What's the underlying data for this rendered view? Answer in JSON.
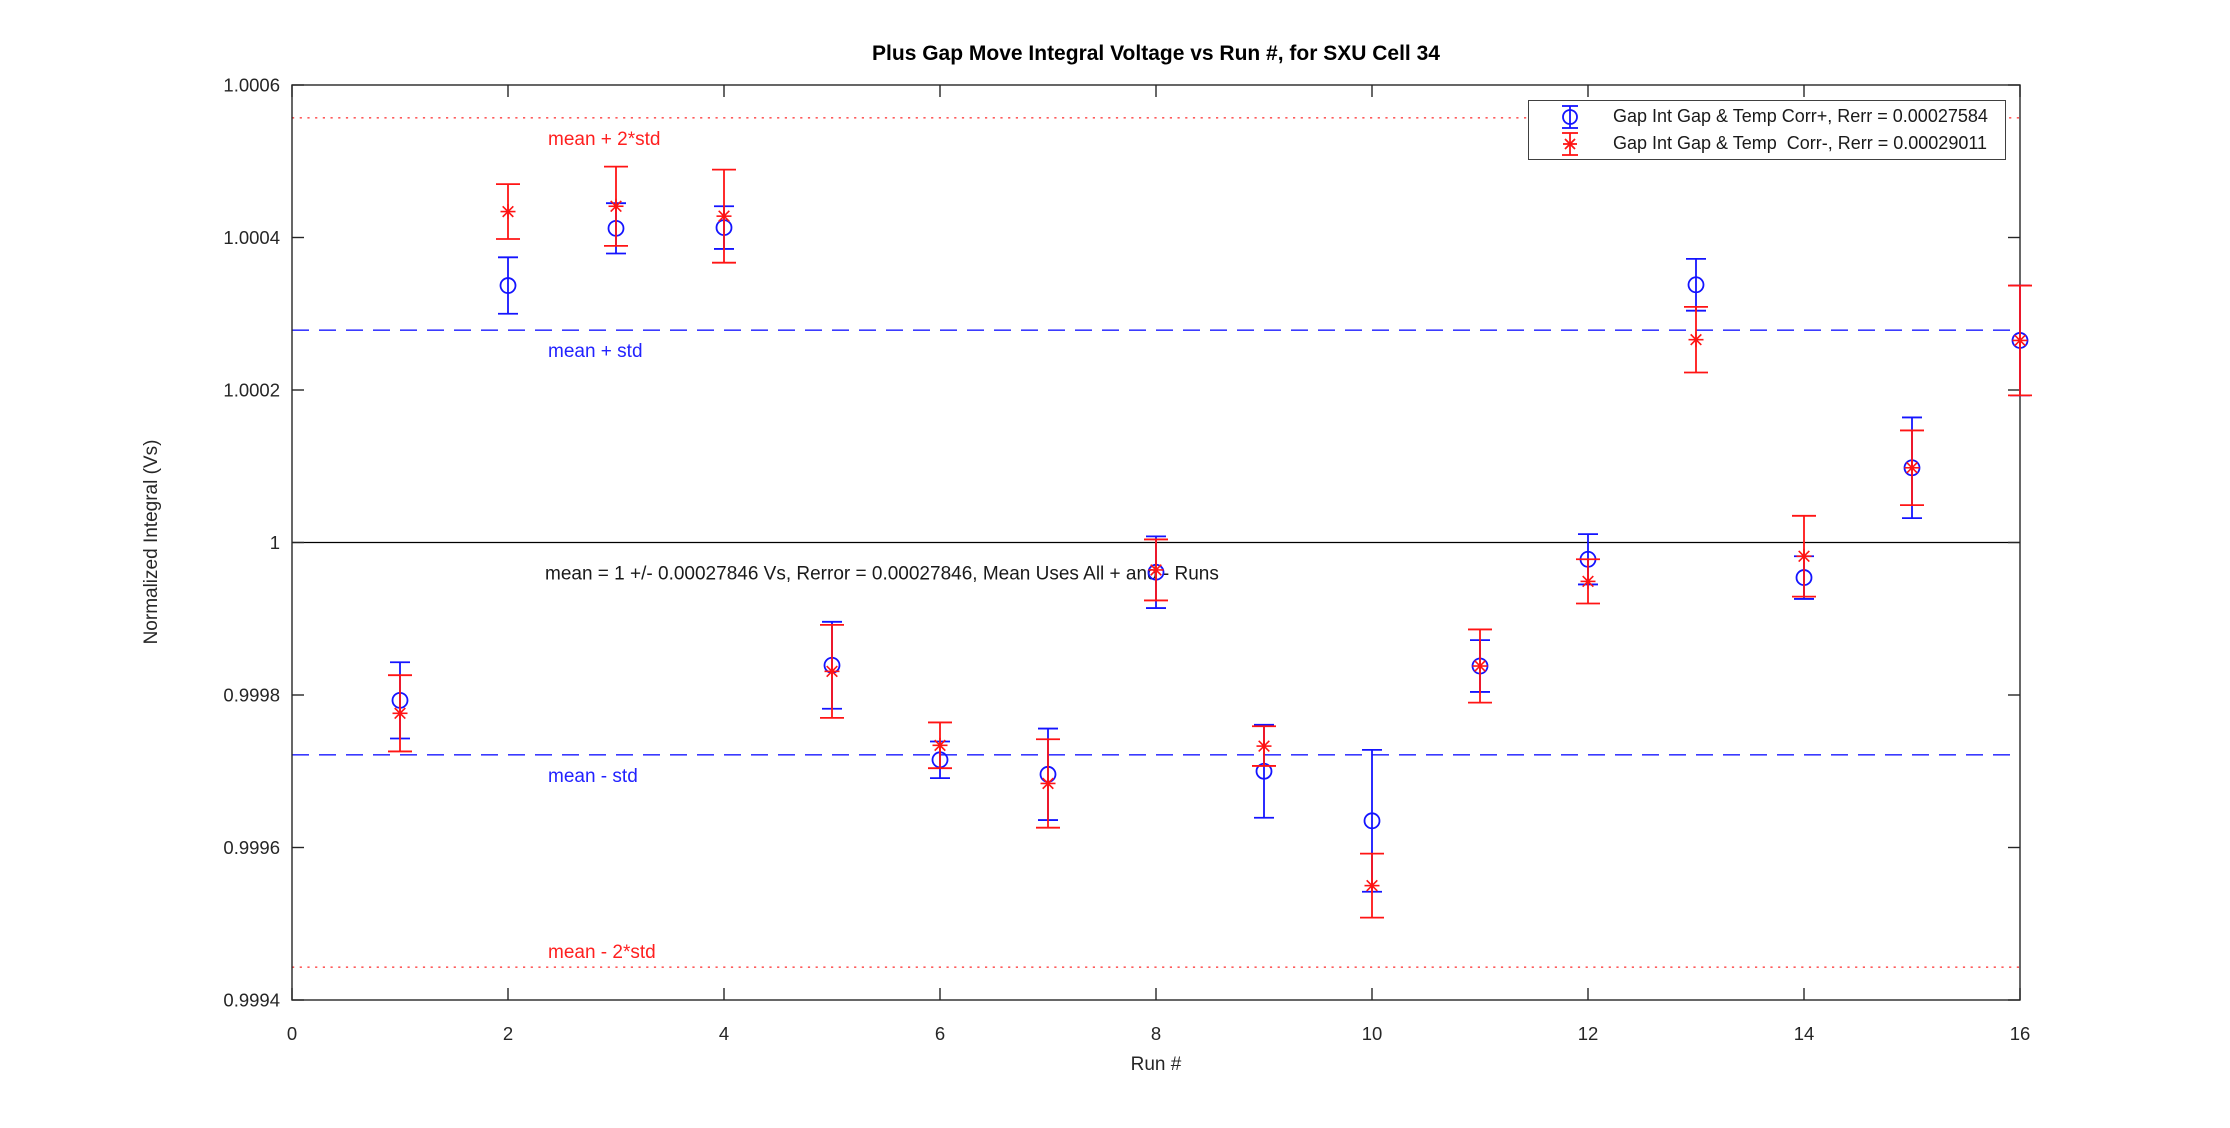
{
  "figure": {
    "title": "Plus Gap Move Integral Voltage vs Run #, for SXU Cell 34",
    "xlabel": "Run #",
    "ylabel": "Normalized Integral (Vs)"
  },
  "chart_data": {
    "type": "scatter",
    "title": "Plus Gap Move Integral Voltage vs Run #, for SXU Cell 34",
    "xlabel": "Run #",
    "ylabel": "Normalized Integral (Vs)",
    "xlim": [
      0,
      16
    ],
    "ylim": [
      0.9994,
      1.0006
    ],
    "xticks": [
      0,
      2,
      4,
      6,
      8,
      10,
      12,
      14,
      16
    ],
    "xtick_labels": [
      "0",
      "2",
      "4",
      "6",
      "8",
      "10",
      "12",
      "14",
      "16"
    ],
    "yticks": [
      0.9994,
      0.9996,
      0.9998,
      1,
      1.0002,
      1.0004,
      1.0006
    ],
    "ytick_labels": [
      "0.9994",
      "0.9996",
      "0.9998",
      "1",
      "1.0002",
      "1.0004",
      "1.0006"
    ],
    "grid": false,
    "legend_position": "top-right",
    "axis_color": "#262626",
    "x": [
      1,
      2,
      3,
      4,
      5,
      6,
      7,
      8,
      9,
      10,
      11,
      12,
      13,
      14,
      15,
      16
    ],
    "series": [
      {
        "name": "Gap Int Gap & Temp Corr+, Rerr = 0.00027584",
        "marker": "circle",
        "color": "#1414ff",
        "cap_halfwidth": 10,
        "values": [
          0.999793,
          1.000337,
          1.000412,
          1.000413,
          0.999839,
          0.999715,
          0.999696,
          0.999961,
          0.9997,
          0.999635,
          0.999838,
          0.999978,
          1.000338,
          0.999954,
          1.000098,
          1.000265
        ],
        "errors": [
          5e-05,
          3.7e-05,
          3.3e-05,
          2.8e-05,
          5.7e-05,
          2.4e-05,
          6e-05,
          4.7e-05,
          6.1e-05,
          9.3e-05,
          3.4e-05,
          3.3e-05,
          3.4e-05,
          2.8e-05,
          6.6e-05,
          7.2e-05
        ]
      },
      {
        "name": "Gap Int Gap & Temp  Corr-, Rerr = 0.00029011",
        "marker": "asterisk",
        "color": "#ff1414",
        "cap_halfwidth": 12,
        "values": [
          0.999776,
          1.000434,
          1.000441,
          1.000428,
          0.999831,
          0.999734,
          0.999684,
          0.999964,
          0.999733,
          0.99955,
          0.999838,
          0.999949,
          1.000266,
          0.999982,
          1.000098,
          1.000265
        ],
        "errors": [
          5e-05,
          3.6e-05,
          5.2e-05,
          6.1e-05,
          6.1e-05,
          3e-05,
          5.8e-05,
          4e-05,
          2.6e-05,
          4.2e-05,
          4.8e-05,
          2.9e-05,
          4.3e-05,
          5.3e-05,
          4.9e-05,
          7.2e-05
        ]
      }
    ],
    "ref_lines": [
      {
        "label": "mean + 2*std",
        "value": 1.00055692,
        "style": "dotted",
        "color": "#ff5c5c",
        "label_color": "#ff2020",
        "label_side": "below"
      },
      {
        "label": "mean + std",
        "value": 1.00027846,
        "style": "dashed",
        "color": "#3b3bff",
        "label_color": "#2222ff",
        "label_side": "below"
      },
      {
        "label": "",
        "value": 1.0,
        "style": "solid",
        "color": "#000000",
        "label_color": "#000000",
        "label_side": "below"
      },
      {
        "label": "mean - std",
        "value": 0.99972154,
        "style": "dashed",
        "color": "#3b3bff",
        "label_color": "#2222ff",
        "label_side": "below"
      },
      {
        "label": "mean - 2*std",
        "value": 0.99944308,
        "style": "dotted",
        "color": "#ff5c5c",
        "label_color": "#ff2020",
        "label_side": "above"
      }
    ],
    "annotation": {
      "text": "mean = 1 +/- 0.00027846 Vs, Rerror = 0.00027846, Mean Uses All + and - Runs",
      "at_value": 1.0,
      "color": "#1a1a1a"
    },
    "stats": {
      "mean": 1,
      "std": 0.00027846
    }
  }
}
